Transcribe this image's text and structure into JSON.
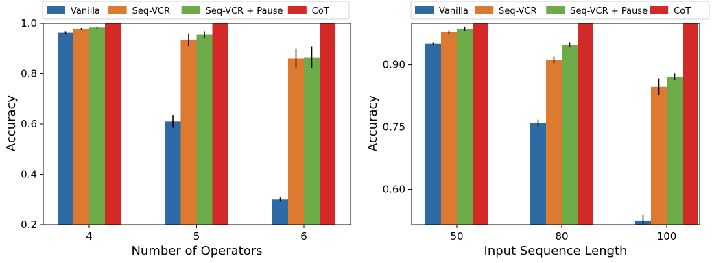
{
  "colors": {
    "Vanilla": "#2e6ba4",
    "Seq-VCR": "#dc7a2f",
    "Seq-VCR + Pause": "#6dab49",
    "CoT": "#d42a27",
    "errorbar": "#000000"
  },
  "chart_data": [
    {
      "type": "bar",
      "legend_position": "top",
      "xlabel": "Number of Operators",
      "ylabel": "Accuracy",
      "ylim": [
        0.2,
        1.0
      ],
      "yticks": [
        "0.2",
        "0.4",
        "0.6",
        "0.8",
        "1.0"
      ],
      "ytick_values": [
        0.2,
        0.4,
        0.6,
        0.8,
        1.0
      ],
      "categories": [
        "4",
        "5",
        "6"
      ],
      "series": [
        {
          "name": "Vanilla",
          "values": [
            0.963,
            0.61,
            0.3
          ],
          "errors": [
            0.006,
            0.025,
            0.008
          ]
        },
        {
          "name": "Seq-VCR",
          "values": [
            0.977,
            0.935,
            0.86
          ],
          "errors": [
            0.004,
            0.025,
            0.038
          ]
        },
        {
          "name": "Seq-VCR + Pause",
          "values": [
            0.983,
            0.955,
            0.865
          ],
          "errors": [
            0.004,
            0.014,
            0.044
          ]
        },
        {
          "name": "CoT",
          "values": [
            1.0,
            1.0,
            1.0
          ],
          "errors": [
            0,
            0,
            0
          ]
        }
      ]
    },
    {
      "type": "bar",
      "legend_position": "top",
      "xlabel": "Input Sequence Length",
      "ylabel": "Accuracy",
      "ylim": [
        0.515,
        1.0
      ],
      "yticks": [
        "0.60",
        "0.75",
        "0.90"
      ],
      "ytick_values": [
        0.6,
        0.75,
        0.9
      ],
      "categories": [
        "50",
        "80",
        "100"
      ],
      "series": [
        {
          "name": "Vanilla",
          "values": [
            0.951,
            0.76,
            0.525
          ],
          "errors": [
            0.002,
            0.008,
            0.013
          ]
        },
        {
          "name": "Seq-VCR",
          "values": [
            0.979,
            0.912,
            0.847
          ],
          "errors": [
            0.004,
            0.008,
            0.02
          ]
        },
        {
          "name": "Seq-VCR + Pause",
          "values": [
            0.987,
            0.948,
            0.871
          ],
          "errors": [
            0.005,
            0.005,
            0.008
          ]
        },
        {
          "name": "CoT",
          "values": [
            1.0,
            1.0,
            1.0
          ],
          "errors": [
            0,
            0,
            0
          ]
        }
      ]
    }
  ]
}
